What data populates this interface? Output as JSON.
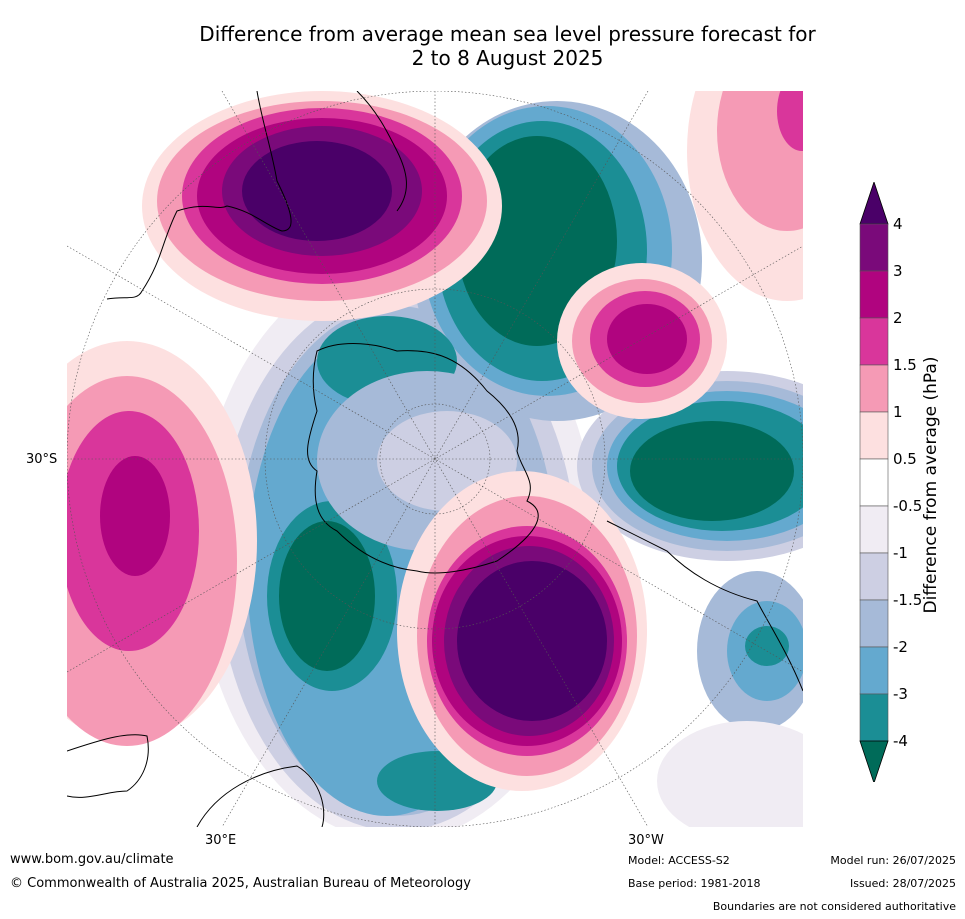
{
  "title_line1": "Difference from average mean sea level pressure forecast for",
  "title_line2": "2 to 8 August 2025",
  "map": {
    "lat_label": "30°S",
    "lon_labels": [
      "30°E",
      "30°W"
    ]
  },
  "colorbar": {
    "title": "Difference from average (hPa)",
    "tick_labels": [
      "4",
      "3",
      "2",
      "1.5",
      "1",
      "0.5",
      "-0.5",
      "-1",
      "-1.5",
      "-2",
      "-3",
      "-4"
    ],
    "colors_top_to_bottom": [
      "#4a0068",
      "#7a0a7a",
      "#b0047f",
      "#d9369b",
      "#f59ab5",
      "#fde0e0",
      "#ffffff",
      "#f0ecf3",
      "#cdcfe3",
      "#a6bad8",
      "#64a9cf",
      "#1b8e95",
      "#006b59"
    ]
  },
  "footer": {
    "website": "www.bom.gov.au/climate",
    "copyright": "© Commonwealth of Australia 2025, Australian Bureau of Meteorology",
    "model": "Model: ACCESS-S2",
    "base_period": "Base period: 1981-2018",
    "model_run": "Model run: 26/07/2025",
    "issued": "Issued: 28/07/2025",
    "disclaimer": "Boundaries are not considered authoritative"
  }
}
